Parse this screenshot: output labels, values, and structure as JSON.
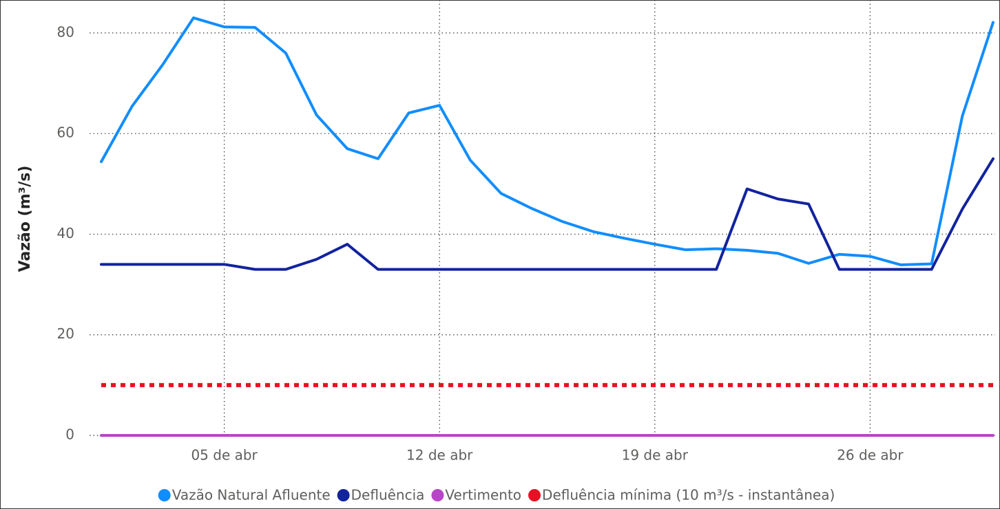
{
  "chart_data": {
    "type": "line",
    "ylabel": "Vazão (m³/s)",
    "categories": [
      null,
      null,
      null,
      null,
      "05 de abr",
      null,
      null,
      null,
      null,
      null,
      null,
      "12 de abr",
      null,
      null,
      null,
      null,
      null,
      null,
      "19 de abr",
      null,
      null,
      null,
      null,
      null,
      null,
      "26 de abr",
      null,
      null,
      null,
      null
    ],
    "series": [
      {
        "name": "Vazão Natural Afluente",
        "color": "#118DFF",
        "values": [
          54.4,
          65.4,
          73.7,
          83.0,
          81.2,
          81.1,
          76.0,
          63.7,
          57.0,
          55.0,
          64.1,
          65.6,
          54.7,
          48.1,
          45.1,
          42.5,
          40.5,
          39.2,
          38.0,
          36.9,
          37.1,
          36.8,
          36.2,
          34.2,
          36.0,
          35.6,
          33.9,
          34.1,
          63.5,
          82.1
        ]
      },
      {
        "name": "Defluência",
        "color": "#12239E",
        "values": [
          34,
          34,
          34,
          34,
          34,
          33,
          33,
          35,
          38,
          33,
          33,
          33,
          33,
          33,
          33,
          33,
          33,
          33,
          33,
          33,
          33,
          49,
          47,
          46,
          33,
          33,
          33,
          33,
          45,
          55
        ]
      },
      {
        "name": "Vertimento",
        "color": "#B845C7",
        "values": [
          0,
          0,
          0,
          0,
          0,
          0,
          0,
          0,
          0,
          0,
          0,
          0,
          0,
          0,
          0,
          0,
          0,
          0,
          0,
          0,
          0,
          0,
          0,
          0,
          0,
          0,
          0,
          0,
          0,
          0
        ]
      },
      {
        "name": "Defluência mínima (10 m³/s - instantânea)",
        "color": "#E81123",
        "style": "dotted",
        "values": [
          10,
          10,
          10,
          10,
          10,
          10,
          10,
          10,
          10,
          10,
          10,
          10,
          10,
          10,
          10,
          10,
          10,
          10,
          10,
          10,
          10,
          10,
          10,
          10,
          10,
          10,
          10,
          10,
          10,
          10
        ]
      }
    ],
    "ylim": [
      0,
      86
    ],
    "yticks": [
      0,
      20,
      40,
      60,
      80
    ],
    "grid": true,
    "legend": "bottom"
  }
}
